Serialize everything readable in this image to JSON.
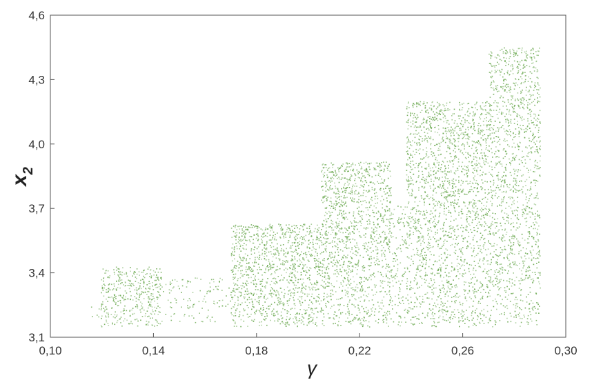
{
  "chart_data": {
    "type": "scatter",
    "title": "",
    "xlabel": "γ",
    "ylabel": {
      "base": "x",
      "sub": "2"
    },
    "xlim": [
      0.1,
      0.3
    ],
    "ylim": [
      3.1,
      4.6
    ],
    "xticks": [
      0.1,
      0.14,
      0.18,
      0.22,
      0.26,
      0.3
    ],
    "yticks": [
      3.1,
      3.4,
      3.7,
      4.0,
      4.3,
      4.6
    ],
    "xtick_labels": [
      "0,10",
      "0,14",
      "0,18",
      "0,22",
      "0,26",
      "0,30"
    ],
    "ytick_labels": [
      "3,1",
      "3,4",
      "3,7",
      "4,0",
      "4,3",
      "4,6"
    ],
    "grid": false,
    "legend": "none",
    "marker_color": "#6aa84f",
    "bands": [
      {
        "x_start": 0.115,
        "x_end": 0.1195,
        "y_min": 3.18,
        "y_max": 3.25,
        "density": 0.25
      },
      {
        "x_start": 0.1195,
        "x_end": 0.143,
        "y_min": 3.15,
        "y_max": 3.43,
        "density": 0.9
      },
      {
        "x_start": 0.143,
        "x_end": 0.17,
        "y_min": 3.17,
        "y_max": 3.38,
        "density": 0.3
      },
      {
        "x_start": 0.17,
        "x_end": 0.205,
        "y_min": 3.15,
        "y_max": 3.63,
        "density": 1.0
      },
      {
        "x_start": 0.205,
        "x_end": 0.232,
        "y_min": 3.15,
        "y_max": 3.92,
        "density": 0.9
      },
      {
        "x_start": 0.232,
        "x_end": 0.238,
        "y_min": 3.15,
        "y_max": 3.72,
        "density": 0.5
      },
      {
        "x_start": 0.238,
        "x_end": 0.27,
        "y_min": 3.15,
        "y_max": 4.2,
        "density": 0.85
      },
      {
        "x_start": 0.27,
        "x_end": 0.29,
        "y_min": 3.15,
        "y_max": 4.45,
        "density": 0.75
      }
    ]
  }
}
